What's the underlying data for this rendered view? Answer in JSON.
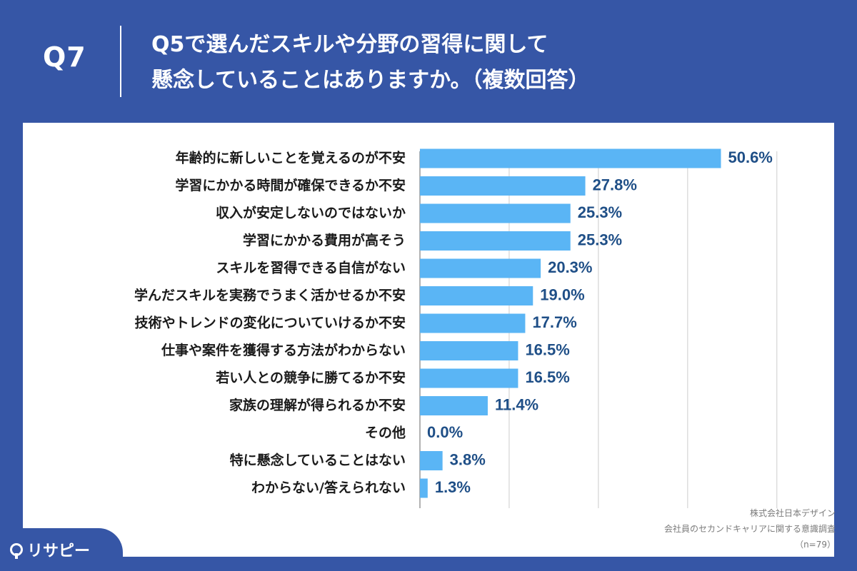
{
  "header": {
    "question_number": "Q7",
    "title_line1": "Q5で選んだスキルや分野の習得に関して",
    "title_line2": "懸念していることはありますか。（複数回答）"
  },
  "source": {
    "company": "株式会社日本デザイン",
    "survey": "会社員のセカンドキャリアに関する意識調査",
    "sample": "（n=79）"
  },
  "logo": {
    "text": "リサピー"
  },
  "colors": {
    "background": "#3656a6",
    "bar": "#5ab5f5",
    "value_text": "#1f4f87",
    "label_text": "#1a1a1a",
    "grid": "#cccccc"
  },
  "chart_data": {
    "type": "bar",
    "orientation": "horizontal",
    "unit": "%",
    "xlim": [
      0,
      60
    ],
    "grid": true,
    "categories": [
      "年齢的に新しいことを覚えるのが不安",
      "学習にかかる時間が確保できるか不安",
      "収入が安定しないのではないか",
      "学習にかかる費用が高そう",
      "スキルを習得できる自信がない",
      "学んだスキルを実務でうまく活かせるか不安",
      "技術やトレンドの変化についていけるか不安",
      "仕事や案件を獲得する方法がわからない",
      "若い人との競争に勝てるか不安",
      "家族の理解が得られるか不安",
      "その他",
      "特に懸念していることはない",
      "わからない/答えられない"
    ],
    "values": [
      50.6,
      27.8,
      25.3,
      25.3,
      20.3,
      19.0,
      17.7,
      16.5,
      16.5,
      11.4,
      0.0,
      3.8,
      1.3
    ],
    "value_labels": [
      "50.6%",
      "27.8%",
      "25.3%",
      "25.3%",
      "20.3%",
      "19.0%",
      "17.7%",
      "16.5%",
      "16.5%",
      "11.4%",
      "0.0%",
      "3.8%",
      "1.3%"
    ]
  }
}
